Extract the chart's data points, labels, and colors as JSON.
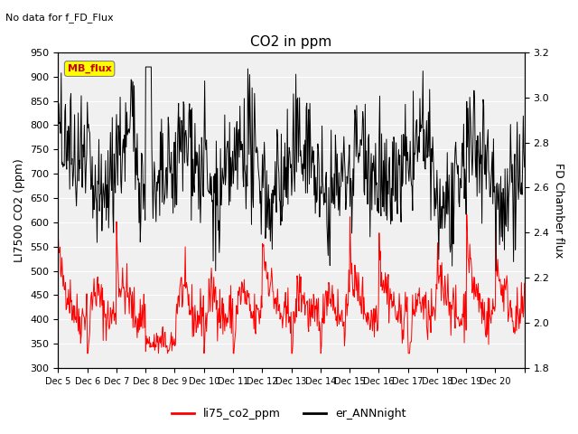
{
  "title": "CO2 in ppm",
  "title_note": "No data for f_FD_Flux",
  "ylabel_left": "LI7500 CO2 (ppm)",
  "ylabel_right": "FD Chamber flux",
  "ylim_left": [
    300,
    950
  ],
  "ylim_right": [
    1.8,
    3.2
  ],
  "yticks_left": [
    300,
    350,
    400,
    450,
    500,
    550,
    600,
    650,
    700,
    750,
    800,
    850,
    900,
    950
  ],
  "yticks_right": [
    1.8,
    2.0,
    2.2,
    2.4,
    2.6,
    2.8,
    3.0,
    3.2
  ],
  "xtick_labels": [
    "Dec 5",
    "Dec 6",
    "Dec 7",
    "Dec 8",
    "Dec 9",
    "Dec 10",
    "Dec 11",
    "Dec 12",
    "Dec 13",
    "Dec 14",
    "Dec 15",
    "Dec 16",
    "Dec 17",
    "Dec 18",
    "Dec 19",
    "Dec 20"
  ],
  "legend_labels": [
    "li75_co2_ppm",
    "er_ANNnight"
  ],
  "legend_colors": [
    "red",
    "black"
  ],
  "color_red": "#ff0000",
  "color_black": "#000000",
  "mb_flux_box_color": "#ffff00",
  "mb_flux_text_color": "#cc0000",
  "background_color": "#f0f0f0",
  "grid_color": "#ffffff",
  "n_days": 16,
  "seed": 42
}
